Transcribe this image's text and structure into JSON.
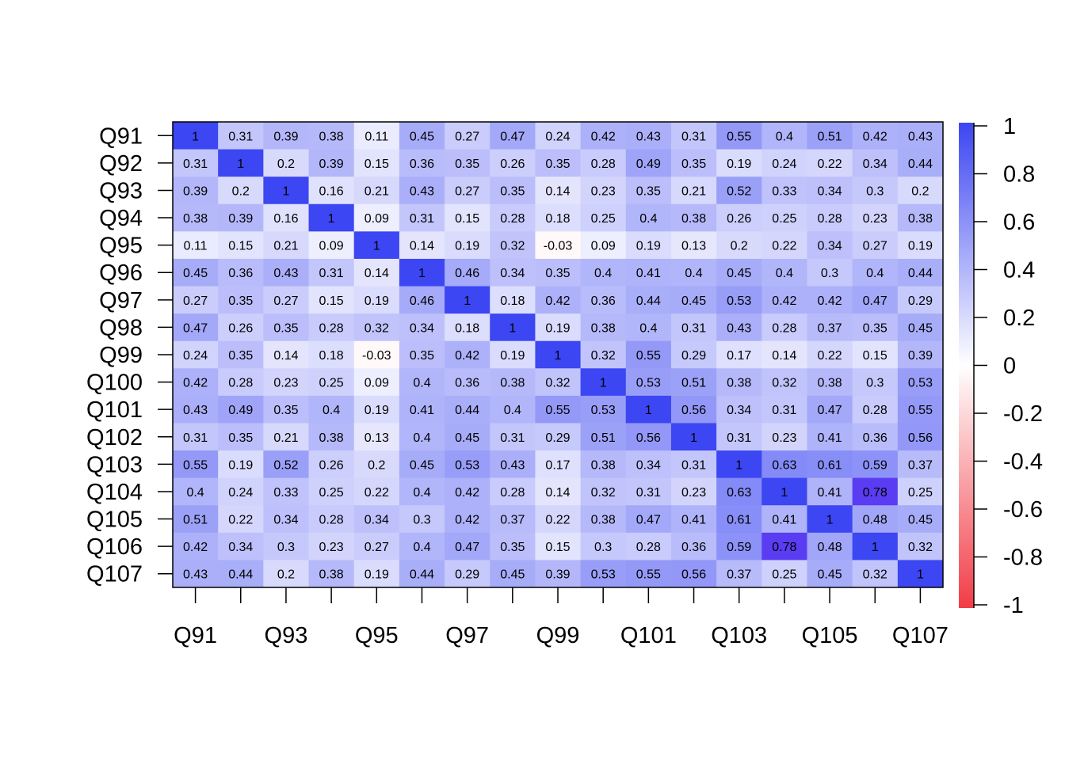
{
  "chart_data": {
    "type": "heatmap",
    "title": "",
    "row_labels": [
      "Q91",
      "Q92",
      "Q93",
      "Q94",
      "Q95",
      "Q96",
      "Q97",
      "Q98",
      "Q99",
      "Q100",
      "Q101",
      "Q102",
      "Q103",
      "Q104",
      "Q105",
      "Q106",
      "Q107"
    ],
    "col_labels": [
      "Q91",
      "Q92",
      "Q93",
      "Q94",
      "Q95",
      "Q96",
      "Q97",
      "Q98",
      "Q99",
      "Q100",
      "Q101",
      "Q102",
      "Q103",
      "Q104",
      "Q105",
      "Q106",
      "Q107"
    ],
    "x_tick_labels": [
      "Q91",
      "Q93",
      "Q95",
      "Q97",
      "Q99",
      "Q101",
      "Q103",
      "Q105",
      "Q107"
    ],
    "values": [
      [
        1,
        0.31,
        0.39,
        0.38,
        0.11,
        0.45,
        0.27,
        0.47,
        0.24,
        0.42,
        0.43,
        0.31,
        0.55,
        0.4,
        0.51,
        0.42,
        0.43
      ],
      [
        0.31,
        1,
        0.2,
        0.39,
        0.15,
        0.36,
        0.35,
        0.26,
        0.35,
        0.28,
        0.49,
        0.35,
        0.19,
        0.24,
        0.22,
        0.34,
        0.44
      ],
      [
        0.39,
        0.2,
        1,
        0.16,
        0.21,
        0.43,
        0.27,
        0.35,
        0.14,
        0.23,
        0.35,
        0.21,
        0.52,
        0.33,
        0.34,
        0.3,
        0.2
      ],
      [
        0.38,
        0.39,
        0.16,
        1,
        0.09,
        0.31,
        0.15,
        0.28,
        0.18,
        0.25,
        0.4,
        0.38,
        0.26,
        0.25,
        0.28,
        0.23,
        0.38
      ],
      [
        0.11,
        0.15,
        0.21,
        0.09,
        1,
        0.14,
        0.19,
        0.32,
        -0.03,
        0.09,
        0.19,
        0.13,
        0.2,
        0.22,
        0.34,
        0.27,
        0.19
      ],
      [
        0.45,
        0.36,
        0.43,
        0.31,
        0.14,
        1,
        0.46,
        0.34,
        0.35,
        0.4,
        0.41,
        0.4,
        0.45,
        0.4,
        0.3,
        0.4,
        0.44
      ],
      [
        0.27,
        0.35,
        0.27,
        0.15,
        0.19,
        0.46,
        1,
        0.18,
        0.42,
        0.36,
        0.44,
        0.45,
        0.53,
        0.42,
        0.42,
        0.47,
        0.29
      ],
      [
        0.47,
        0.26,
        0.35,
        0.28,
        0.32,
        0.34,
        0.18,
        1,
        0.19,
        0.38,
        0.4,
        0.31,
        0.43,
        0.28,
        0.37,
        0.35,
        0.45
      ],
      [
        0.24,
        0.35,
        0.14,
        0.18,
        -0.03,
        0.35,
        0.42,
        0.19,
        1,
        0.32,
        0.55,
        0.29,
        0.17,
        0.14,
        0.22,
        0.15,
        0.39
      ],
      [
        0.42,
        0.28,
        0.23,
        0.25,
        0.09,
        0.4,
        0.36,
        0.38,
        0.32,
        1,
        0.53,
        0.51,
        0.38,
        0.32,
        0.38,
        0.3,
        0.53
      ],
      [
        0.43,
        0.49,
        0.35,
        0.4,
        0.19,
        0.41,
        0.44,
        0.4,
        0.55,
        0.53,
        1,
        0.56,
        0.34,
        0.31,
        0.47,
        0.28,
        0.55
      ],
      [
        0.31,
        0.35,
        0.21,
        0.38,
        0.13,
        0.4,
        0.45,
        0.31,
        0.29,
        0.51,
        0.56,
        1,
        0.31,
        0.23,
        0.41,
        0.36,
        0.56
      ],
      [
        0.55,
        0.19,
        0.52,
        0.26,
        0.2,
        0.45,
        0.53,
        0.43,
        0.17,
        0.38,
        0.34,
        0.31,
        1,
        0.63,
        0.61,
        0.59,
        0.37
      ],
      [
        0.4,
        0.24,
        0.33,
        0.25,
        0.22,
        0.4,
        0.42,
        0.28,
        0.14,
        0.32,
        0.31,
        0.23,
        0.63,
        1,
        0.41,
        0.78,
        0.25
      ],
      [
        0.51,
        0.22,
        0.34,
        0.28,
        0.34,
        0.3,
        0.42,
        0.37,
        0.22,
        0.38,
        0.47,
        0.41,
        0.61,
        0.41,
        1,
        0.48,
        0.45
      ],
      [
        0.42,
        0.34,
        0.3,
        0.23,
        0.27,
        0.4,
        0.47,
        0.35,
        0.15,
        0.3,
        0.28,
        0.36,
        0.59,
        0.78,
        0.48,
        1,
        0.32
      ],
      [
        0.43,
        0.44,
        0.2,
        0.38,
        0.19,
        0.44,
        0.29,
        0.45,
        0.39,
        0.53,
        0.55,
        0.56,
        0.37,
        0.25,
        0.45,
        0.32,
        1
      ]
    ],
    "value_range": [
      -1,
      1
    ],
    "legend": {
      "position": "right",
      "ticks": [
        "1",
        "0.8",
        "0.6",
        "0.4",
        "0.2",
        "0",
        "-0.2",
        "-0.4",
        "-0.6",
        "-0.8",
        "-1"
      ]
    },
    "colors": {
      "positive": "#3c46f2",
      "zero": "#ffffff",
      "negative": "#f23c46",
      "special_078": "#5a3cf2"
    }
  }
}
